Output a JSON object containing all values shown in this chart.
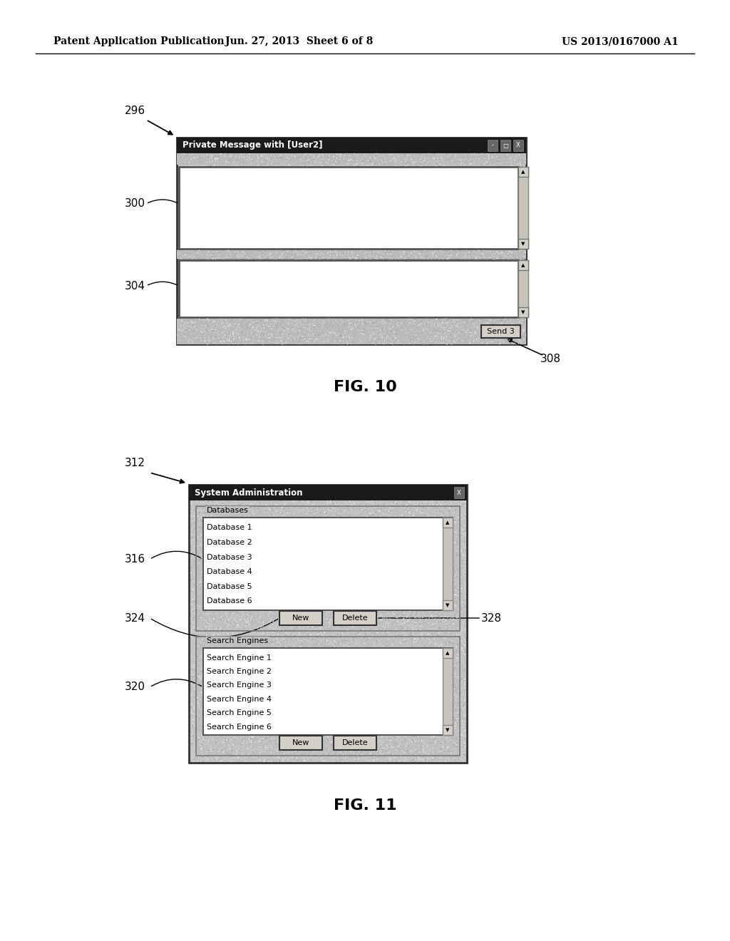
{
  "bg_color": "#ffffff",
  "header_left": "Patent Application Publication",
  "header_mid": "Jun. 27, 2013  Sheet 6 of 8",
  "header_right": "US 2013/0167000 A1",
  "fig10": {
    "label": "FIG. 10",
    "window_title": "Private Message with [User2]",
    "send_btn": "Send 3",
    "ref296": "296",
    "ref300": "300",
    "ref304": "304",
    "ref308": "308"
  },
  "fig11": {
    "label": "FIG. 11",
    "window_title": "System Administration",
    "databases_label": "Databases",
    "db_items": [
      "Database 1",
      "Database 2",
      "Database 3",
      "Database 4",
      "Database 5",
      "Database 6"
    ],
    "search_engines_label": "Search Engines",
    "se_items": [
      "Search Engine 1",
      "Search Engine 2",
      "Search Engine 3",
      "Search Engine 4",
      "Search Engine 5",
      "Search Engine 6"
    ],
    "new_btn": "New",
    "delete_btn": "Delete",
    "ref312": "312",
    "ref316": "316",
    "ref320": "320",
    "ref324": "324",
    "ref328": "328"
  },
  "grain_color": "#cccccc",
  "grain_dark": "#999999",
  "titlebar_color": "#1a1a1a",
  "window_border": "#555555",
  "listbox_border": "#666666",
  "button_face": "#d4d0c8",
  "button_border": "#444444",
  "scrollbar_color": "#c8c4bc"
}
